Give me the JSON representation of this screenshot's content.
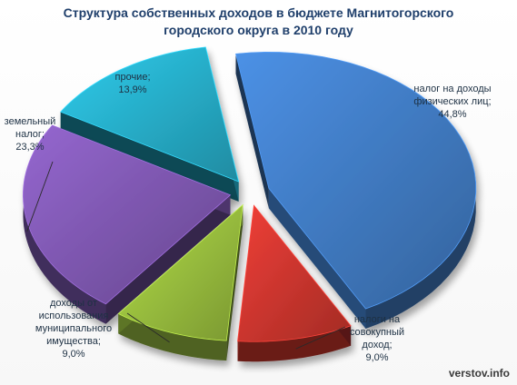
{
  "chart_data": {
    "type": "pie",
    "title_lines": [
      "Структура собственных доходов в бюджете Магнитогорского",
      "городского округа в 2010 году"
    ],
    "slices": [
      {
        "label_lines": [
          "налог на доходы",
          "физических лиц;"
        ],
        "value": 44.8,
        "value_text": "44,8%",
        "color": "#3d74b8"
      },
      {
        "label_lines": [
          "налоги на",
          "совокупный",
          "доход;"
        ],
        "value": 9.0,
        "value_text": "9,0%",
        "color": "#c0322c"
      },
      {
        "label_lines": [
          "доходы от",
          "использования",
          "муниципального",
          "имущества;"
        ],
        "value": 9.0,
        "value_text": "9,0%",
        "color": "#8fb23a"
      },
      {
        "label_lines": [
          "земельный",
          "налог;"
        ],
        "value": 23.3,
        "value_text": "23,3%",
        "color": "#7752a6"
      },
      {
        "label_lines": [
          "прочие;"
        ],
        "value": 13.9,
        "value_text": "13,9%",
        "color": "#25a3bd"
      }
    ],
    "legend": "none",
    "start_angle_deg": 0,
    "direction": "clockwise",
    "exploded": true,
    "three_d": true
  },
  "watermark": "verstov.info"
}
